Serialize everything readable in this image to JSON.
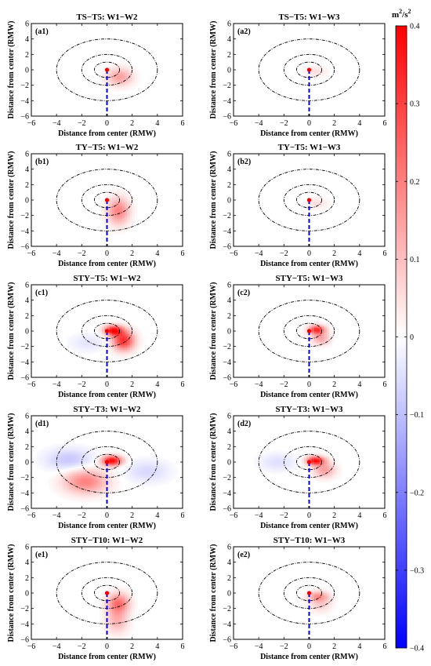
{
  "chart_data": {
    "type": "heatmap",
    "colorbar": {
      "unit": "m²/s²",
      "unit_base": "m",
      "unit_exp": "2",
      "unit_slash": "/s",
      "range": [
        -0.4,
        0.4
      ],
      "ticks": [
        0.4,
        0.3,
        0.2,
        0.1,
        0,
        -0.1,
        -0.2,
        -0.3,
        -0.4
      ],
      "tick_labels": [
        "0.4",
        "0.3",
        "0.2",
        "0.1",
        "0",
        "−0.1",
        "−0.2",
        "−0.3",
        "−0.4"
      ],
      "colormap": [
        "#0000ff",
        "#ffffff",
        "#ff0000"
      ]
    },
    "axes": {
      "xlabel": "Distance from center (RMW)",
      "ylabel": "Distance from center (RMW)",
      "xlim": [
        -6,
        6
      ],
      "ylim": [
        -6,
        6
      ],
      "xticks": [
        -6,
        -4,
        -2,
        0,
        2,
        4,
        6
      ],
      "yticks": [
        -6,
        -4,
        -2,
        0,
        2,
        4,
        6
      ],
      "xtick_labels": [
        "−6",
        "−4",
        "−2",
        "0",
        "2",
        "4",
        "6"
      ],
      "ytick_labels": [
        "−6",
        "−4",
        "−2",
        "0",
        "2",
        "4",
        "6"
      ],
      "circle_radii": [
        1,
        2,
        4
      ],
      "center_marker": [
        0,
        0
      ],
      "shear_line": {
        "x": 0,
        "y_from": 0,
        "y_to": -6
      }
    },
    "panels": [
      {
        "label": "(a1)",
        "title": "TS−T5: W1−W2",
        "blobs": [
          {
            "x": 1.0,
            "y": -0.9,
            "sx": 0.7,
            "sy": 0.8,
            "a": 0.15
          }
        ]
      },
      {
        "label": "(a2)",
        "title": "TS−T5: W1−W3",
        "blobs": [
          {
            "x": 0.5,
            "y": -0.2,
            "sx": 0.6,
            "sy": 0.5,
            "a": 0.05
          }
        ]
      },
      {
        "label": "(b1)",
        "title": "TY−T5: W1−W2",
        "blobs": [
          {
            "x": 0.9,
            "y": -1.4,
            "sx": 0.6,
            "sy": 1.2,
            "a": 0.2
          }
        ]
      },
      {
        "label": "(b2)",
        "title": "TY−T5: W1−W3",
        "blobs": [
          {
            "x": 0.6,
            "y": -0.4,
            "sx": 0.6,
            "sy": 0.5,
            "a": 0.05
          }
        ]
      },
      {
        "label": "(c1)",
        "title": "STY−T5: W1−W2",
        "blobs": [
          {
            "x": 0.5,
            "y": 0.1,
            "sx": 0.5,
            "sy": 0.45,
            "a": 0.38
          },
          {
            "x": 1.3,
            "y": -1.2,
            "sx": 0.6,
            "sy": 0.9,
            "a": 0.33
          },
          {
            "x": -1.5,
            "y": -1.5,
            "sx": 1.0,
            "sy": 0.8,
            "a": -0.04
          }
        ]
      },
      {
        "label": "(c2)",
        "title": "STY−T5: W1−W3",
        "blobs": [
          {
            "x": 0.6,
            "y": 0.2,
            "sx": 0.45,
            "sy": 0.4,
            "a": 0.33
          },
          {
            "x": 0.9,
            "y": -0.9,
            "sx": 0.5,
            "sy": 0.6,
            "a": 0.14
          }
        ]
      },
      {
        "label": "(d1)",
        "title": "STY−T3: W1−W2",
        "blobs": [
          {
            "x": 0.4,
            "y": 0.2,
            "sx": 0.55,
            "sy": 0.45,
            "a": 0.4
          },
          {
            "x": -1.7,
            "y": -2.5,
            "sx": 1.2,
            "sy": 1.1,
            "a": 0.2
          },
          {
            "x": -3.0,
            "y": 0.3,
            "sx": 1.3,
            "sy": 1.0,
            "a": -0.09
          },
          {
            "x": 3.2,
            "y": -1.2,
            "sx": 1.2,
            "sy": 1.0,
            "a": -0.06
          }
        ]
      },
      {
        "label": "(d2)",
        "title": "STY−T3: W1−W3",
        "blobs": [
          {
            "x": 0.5,
            "y": 0.2,
            "sx": 0.5,
            "sy": 0.4,
            "a": 0.38
          },
          {
            "x": 1.2,
            "y": -1.0,
            "sx": 0.6,
            "sy": 0.7,
            "a": 0.15
          },
          {
            "x": -2.5,
            "y": 0.0,
            "sx": 1.0,
            "sy": 0.8,
            "a": -0.05
          }
        ]
      },
      {
        "label": "(e1)",
        "title": "STY−T10: W1−W2",
        "blobs": [
          {
            "x": 0.9,
            "y": -1.3,
            "sx": 0.6,
            "sy": 0.9,
            "a": 0.22
          },
          {
            "x": 0.8,
            "y": -3.5,
            "sx": 0.6,
            "sy": 1.2,
            "a": 0.12
          }
        ]
      },
      {
        "label": "(e2)",
        "title": "STY−T10: W1−W3",
        "blobs": [
          {
            "x": 0.7,
            "y": -0.4,
            "sx": 0.55,
            "sy": 0.45,
            "a": 0.15
          },
          {
            "x": 0.9,
            "y": -1.3,
            "sx": 0.6,
            "sy": 0.8,
            "a": 0.08
          }
        ]
      }
    ]
  }
}
